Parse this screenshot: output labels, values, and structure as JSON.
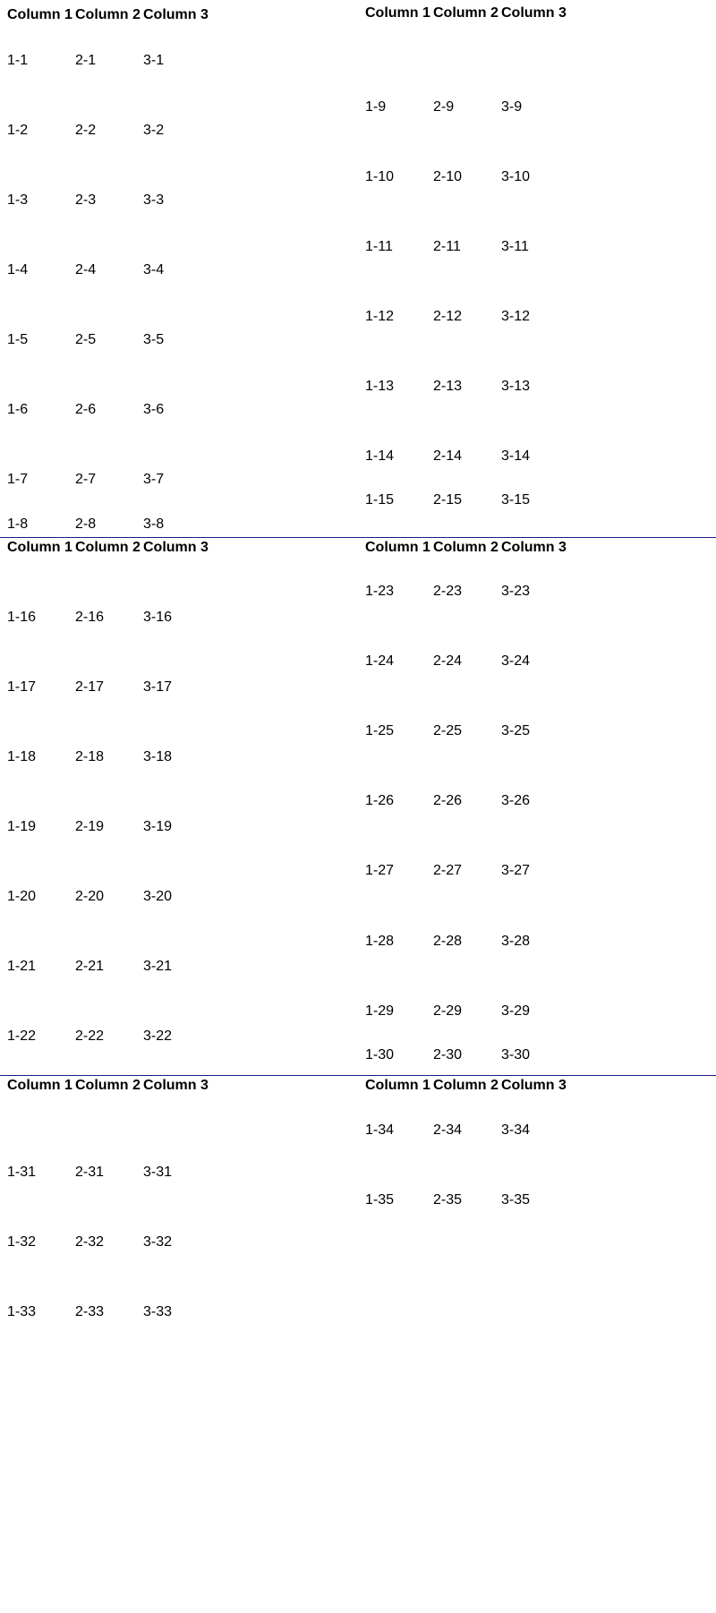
{
  "colors": {
    "separator": "#1a1a8c",
    "text": "#000000",
    "background": "#ffffff"
  },
  "header": [
    "Column 1",
    "Column 2",
    "Column 3"
  ],
  "rows": [
    [
      "1-1",
      "2-1",
      "3-1"
    ],
    [
      "1-2",
      "2-2",
      "3-2"
    ],
    [
      "1-3",
      "2-3",
      "3-3"
    ],
    [
      "1-4",
      "2-4",
      "3-4"
    ],
    [
      "1-5",
      "2-5",
      "3-5"
    ],
    [
      "1-6",
      "2-6",
      "3-6"
    ],
    [
      "1-7",
      "2-7",
      "3-7"
    ],
    [
      "1-8",
      "2-8",
      "3-8"
    ],
    [
      "1-9",
      "2-9",
      "3-9"
    ],
    [
      "1-10",
      "2-10",
      "3-10"
    ],
    [
      "1-11",
      "2-11",
      "3-11"
    ],
    [
      "1-12",
      "2-12",
      "3-12"
    ],
    [
      "1-13",
      "2-13",
      "3-13"
    ],
    [
      "1-14",
      "2-14",
      "3-14"
    ],
    [
      "1-15",
      "2-15",
      "3-15"
    ],
    [
      "1-16",
      "2-16",
      "3-16"
    ],
    [
      "1-17",
      "2-17",
      "3-17"
    ],
    [
      "1-18",
      "2-18",
      "3-18"
    ],
    [
      "1-19",
      "2-19",
      "3-19"
    ],
    [
      "1-20",
      "2-20",
      "3-20"
    ],
    [
      "1-21",
      "2-21",
      "3-21"
    ],
    [
      "1-22",
      "2-22",
      "3-22"
    ],
    [
      "1-23",
      "2-23",
      "3-23"
    ],
    [
      "1-24",
      "2-24",
      "3-24"
    ],
    [
      "1-25",
      "2-25",
      "3-25"
    ],
    [
      "1-26",
      "2-26",
      "3-26"
    ],
    [
      "1-27",
      "2-27",
      "3-27"
    ],
    [
      "1-28",
      "2-28",
      "3-28"
    ],
    [
      "1-29",
      "2-29",
      "3-29"
    ],
    [
      "1-30",
      "2-30",
      "3-30"
    ],
    [
      "1-31",
      "2-31",
      "3-31"
    ],
    [
      "1-32",
      "2-32",
      "3-32"
    ],
    [
      "1-33",
      "2-33",
      "3-33"
    ],
    [
      "1-34",
      "2-34",
      "3-34"
    ],
    [
      "1-35",
      "2-35",
      "3-35"
    ]
  ]
}
